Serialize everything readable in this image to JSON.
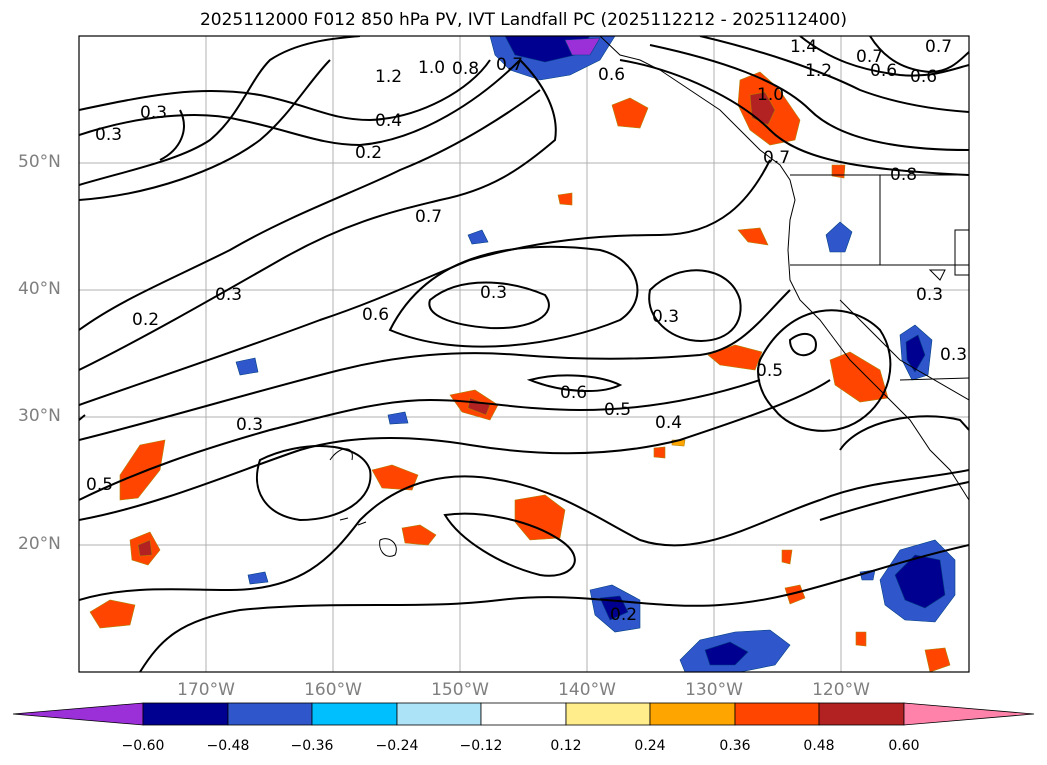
{
  "title": "2025112000 F012 850 hPa PV, IVT Landfall PC (2025112212 - 2025112400)",
  "map": {
    "lat_ticks": [
      "50°N",
      "40°N",
      "30°N",
      "20°N"
    ],
    "lon_ticks": [
      "170°W",
      "160°W",
      "150°W",
      "140°W",
      "130°W",
      "120°W"
    ],
    "contour_labels": [
      "1.4",
      "1.2",
      "1.0",
      "0.8",
      "0.7",
      "0.6",
      "0.3",
      "0.4",
      "0.2",
      "0.7",
      "1.2",
      "0.6",
      "0.6",
      "0.7",
      "1.0",
      "0.7",
      "0.8",
      "0.7",
      "0.3",
      "0.2",
      "0.3",
      "0.6",
      "0.3",
      "0.3",
      "0.5",
      "0.6",
      "0.5",
      "0.4",
      "0.3",
      "0.5",
      "0.2",
      "0.3",
      "0.3"
    ]
  },
  "colorbar": {
    "ticks": [
      "−0.60",
      "−0.48",
      "−0.36",
      "−0.24",
      "−0.12",
      "0.12",
      "0.24",
      "0.36",
      "0.48",
      "0.60"
    ],
    "colors": [
      "#9b30d9",
      "#000090",
      "#3056cc",
      "#00bfff",
      "#ade3f7",
      "#ffffff",
      "#ffec8b",
      "#ffa500",
      "#ff4500",
      "#b22222",
      "#ff82ab"
    ]
  }
}
